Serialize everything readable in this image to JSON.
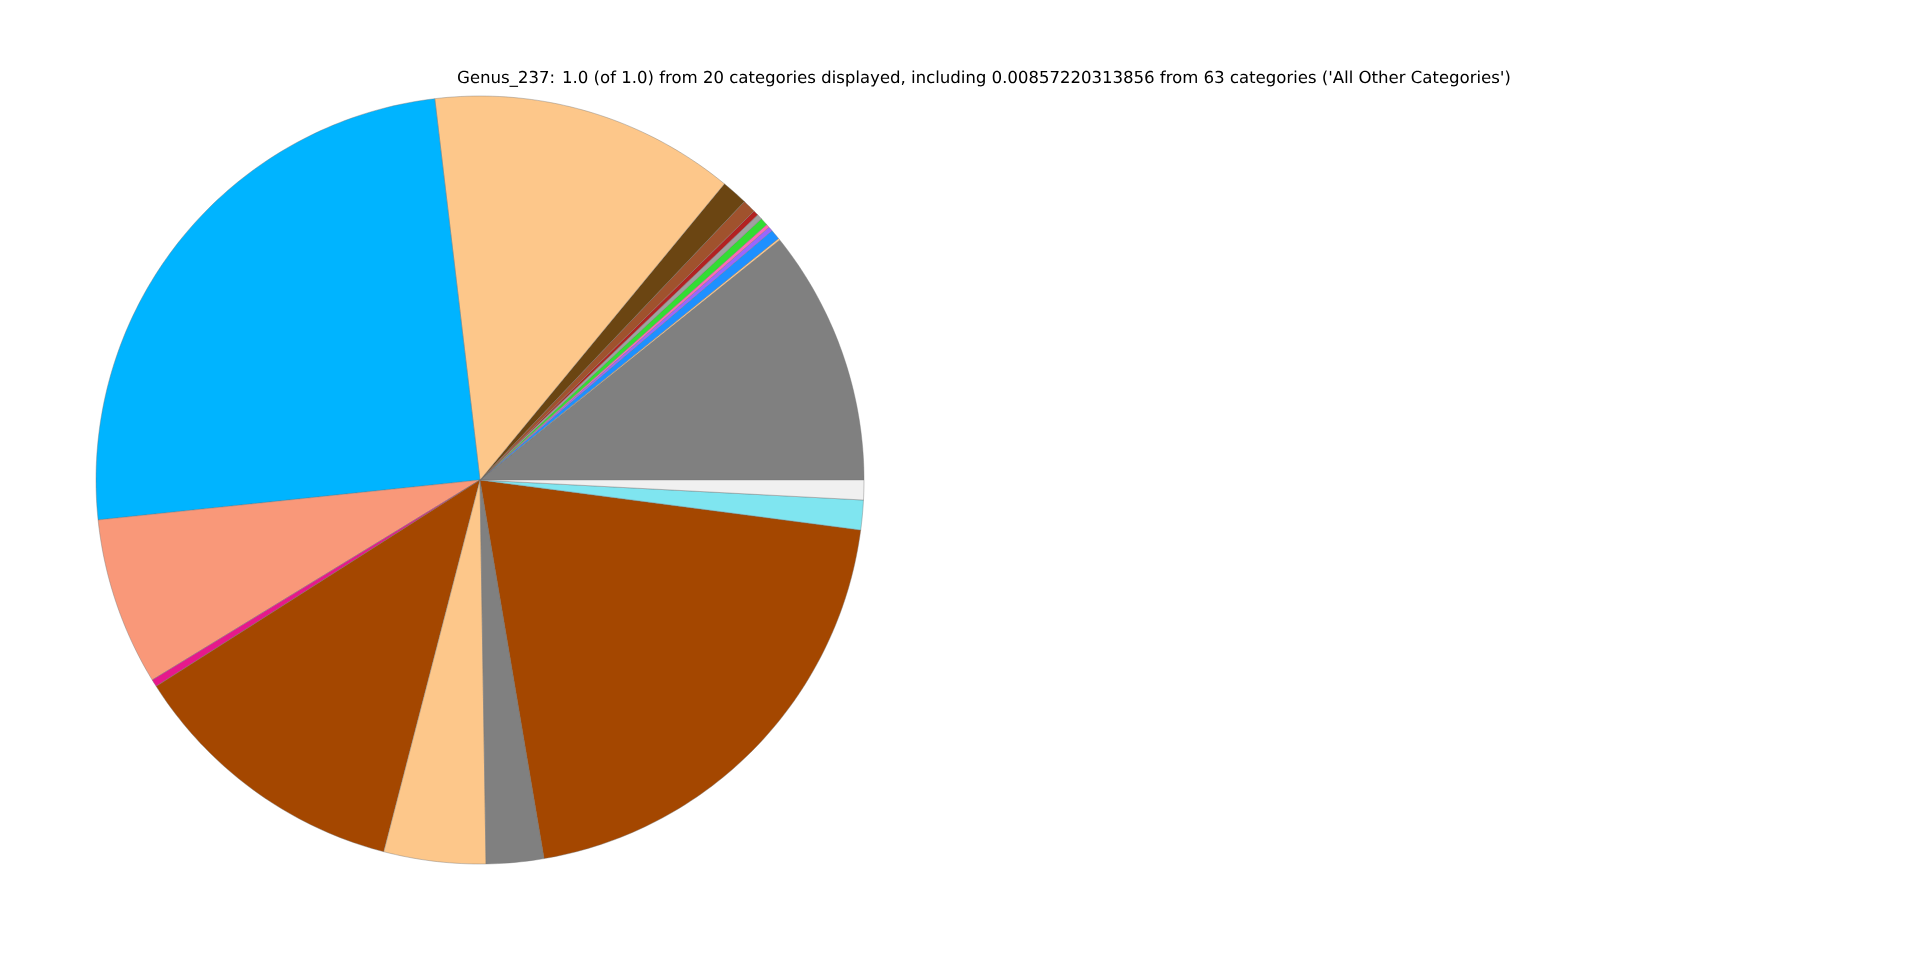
{
  "chart_data": {
    "type": "pie",
    "title": "Genus_237: 1.0 (of 1.0) from 20 categories displayed, including 0.00857220313856 from 63 categories ('All Other Categories')",
    "categories": [
      null,
      null,
      null,
      null,
      null,
      null,
      null,
      null,
      null,
      null,
      null,
      null,
      null,
      null,
      null,
      null,
      null,
      null,
      null,
      null
    ],
    "values": [
      10.75,
      0.08,
      0.42,
      0.19,
      0.14,
      0.33,
      0.22,
      0.22,
      0.56,
      1.11,
      12.86,
      24.78,
      7.06,
      0.31,
      11.94,
      4.28,
      2.42,
      20.25,
      1.25,
      0.83
    ],
    "colors": [
      "#808080",
      "#fdc78a",
      "#1e90ff",
      "#9966ff",
      "#ff69b4",
      "#33dd33",
      "#a0a0a0",
      "#b22222",
      "#a0522d",
      "#6b4512",
      "#fdc78a",
      "#00b4ff",
      "#f99879",
      "#e6198c",
      "#a44700",
      "#fdc78a",
      "#808080",
      "#a44700",
      "#7fe5f0",
      "#f0f0f0"
    ]
  }
}
